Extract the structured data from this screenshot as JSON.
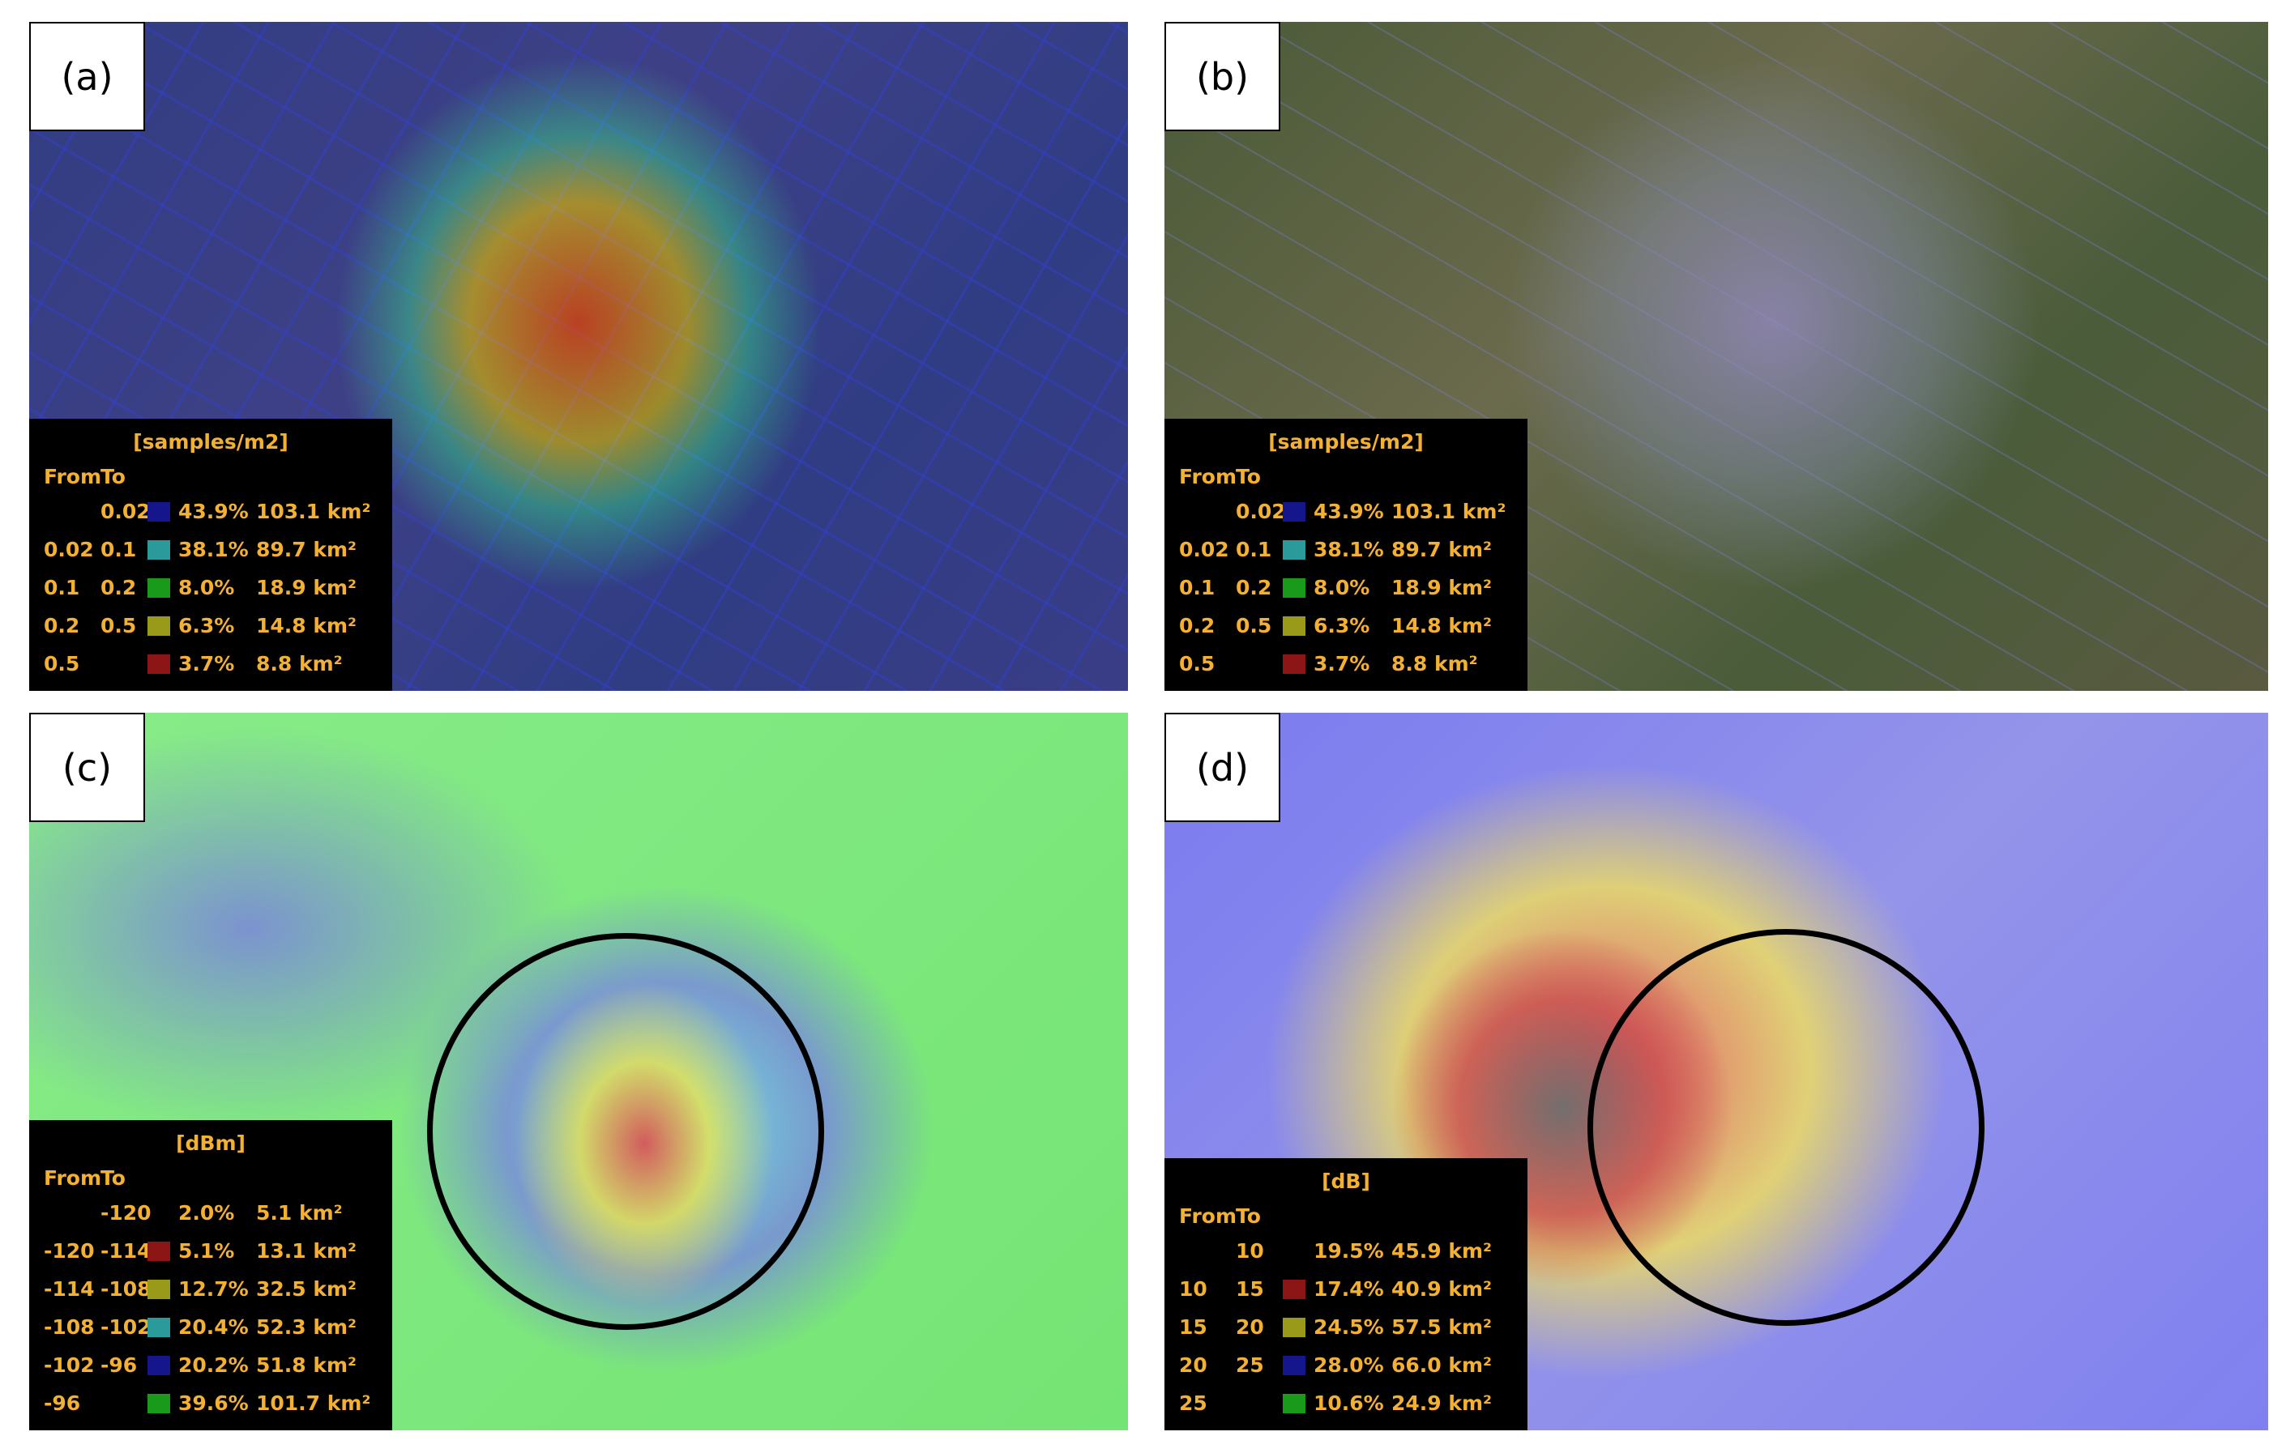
{
  "panels": [
    {
      "label": "(a)",
      "legend": {
        "title": "[samples/m2]",
        "from_header": "From",
        "to_header": "To",
        "rows": [
          {
            "to": "0.02",
            "color": "#16168c",
            "share": "43.9%",
            "area": "103.1 km²"
          },
          {
            "from": "0.02",
            "to": "0.1",
            "color": "#2a9a9a",
            "share": "38.1%",
            "area": "89.7 km²"
          },
          {
            "from": "0.1",
            "to": "0.2",
            "color": "#1a9a1a",
            "share": "8.0%",
            "area": "18.9 km²"
          },
          {
            "from": "0.2",
            "to": "0.5",
            "color": "#9a9a1a",
            "share": "6.3%",
            "area": "14.8 km²"
          },
          {
            "from": "0.5",
            "color": "#8c1616",
            "share": "3.7%",
            "area": "8.8 km²"
          }
        ]
      }
    },
    {
      "label": "(b)",
      "legend": {
        "title": "[samples/m2]",
        "from_header": "From",
        "to_header": "To",
        "rows": [
          {
            "to": "0.02",
            "color": "#16168c",
            "share": "43.9%",
            "area": "103.1 km²"
          },
          {
            "from": "0.02",
            "to": "0.1",
            "color": "#2a9a9a",
            "share": "38.1%",
            "area": "89.7 km²"
          },
          {
            "from": "0.1",
            "to": "0.2",
            "color": "#1a9a1a",
            "share": "8.0%",
            "area": "18.9 km²"
          },
          {
            "from": "0.2",
            "to": "0.5",
            "color": "#9a9a1a",
            "share": "6.3%",
            "area": "14.8 km²"
          },
          {
            "from": "0.5",
            "color": "#8c1616",
            "share": "3.7%",
            "area": "8.8 km²"
          }
        ]
      }
    },
    {
      "label": "(c)",
      "legend": {
        "title": "[dBm]",
        "from_header": "From",
        "to_header": "To",
        "rows": [
          {
            "to": "-120",
            "share": "2.0%",
            "area": "5.1 km²"
          },
          {
            "from": "-120",
            "to": "-114",
            "color": "#8c1616",
            "share": "5.1%",
            "area": "13.1 km²"
          },
          {
            "from": "-114",
            "to": "-108",
            "color": "#9a9a1a",
            "share": "12.7%",
            "area": "32.5 km²"
          },
          {
            "from": "-108",
            "to": "-102",
            "color": "#2a9a9a",
            "share": "20.4%",
            "area": "52.3 km²"
          },
          {
            "from": "-102",
            "to": "-96",
            "color": "#16168c",
            "share": "20.2%",
            "area": "51.8 km²"
          },
          {
            "from": "-96",
            "color": "#1a9a1a",
            "share": "39.6%",
            "area": "101.7 km²"
          }
        ]
      }
    },
    {
      "label": "(d)",
      "legend": {
        "title": "[dB]",
        "from_header": "From",
        "to_header": "To",
        "rows": [
          {
            "to": "10",
            "share": "19.5%",
            "area": "45.9 km²"
          },
          {
            "from": "10",
            "to": "15",
            "color": "#8c1616",
            "share": "17.4%",
            "area": "40.9 km²"
          },
          {
            "from": "15",
            "to": "20",
            "color": "#9a9a1a",
            "share": "24.5%",
            "area": "57.5 km²"
          },
          {
            "from": "20",
            "to": "25",
            "color": "#16168c",
            "share": "28.0%",
            "area": "66.0 km²"
          },
          {
            "from": "25",
            "color": "#1a9a1a",
            "share": "10.6%",
            "area": "24.9 km²"
          }
        ]
      }
    }
  ]
}
